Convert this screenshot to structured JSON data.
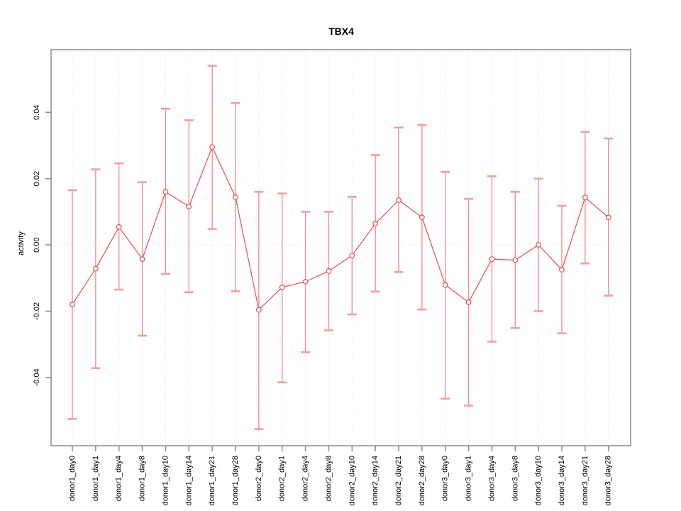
{
  "chart_data": {
    "type": "line",
    "title": "TBX4",
    "ylabel": "activity",
    "xlabel": "",
    "legend": "none",
    "grid": "vertical-dotted-per-category",
    "zero_line": true,
    "marker": "open-circle",
    "error_bars": true,
    "categories": [
      "donor1_day0",
      "donor1_day1",
      "donor1_day4",
      "donor1_day8",
      "donor1_day10",
      "donor1_day14",
      "donor1_day21",
      "donor1_day28",
      "donor2_day0",
      "donor2_day1",
      "donor2_day4",
      "donor2_day8",
      "donor2_day10",
      "donor2_day14",
      "donor2_day21",
      "donor2_day28",
      "donor3_day0",
      "donor3_day1",
      "donor3_day4",
      "donor3_day8",
      "donor3_day10",
      "donor3_day14",
      "donor3_day21",
      "donor3_day28"
    ],
    "series": [
      {
        "name": "activity",
        "values": [
          -0.018,
          -0.0072,
          0.0054,
          -0.0043,
          0.016,
          0.0116,
          0.0295,
          0.0144,
          -0.0196,
          -0.0128,
          -0.0111,
          -0.0079,
          -0.0032,
          0.0064,
          0.0135,
          0.0083,
          -0.0121,
          -0.0173,
          -0.0043,
          -0.0046,
          0.0,
          -0.0075,
          0.0143,
          0.0083
        ],
        "error_low": [
          -0.0525,
          -0.0372,
          -0.0135,
          -0.0274,
          -0.0088,
          -0.0143,
          0.0048,
          -0.014,
          -0.0556,
          -0.0415,
          -0.0324,
          -0.0258,
          -0.021,
          -0.0141,
          -0.0082,
          -0.0195,
          -0.0464,
          -0.0485,
          -0.0292,
          -0.0251,
          -0.02,
          -0.0267,
          -0.0056,
          -0.0153
        ],
        "error_high": [
          0.0165,
          0.0228,
          0.0246,
          0.0189,
          0.0411,
          0.0376,
          0.054,
          0.0428,
          0.016,
          0.0155,
          0.01,
          0.01,
          0.0145,
          0.0271,
          0.0354,
          0.0362,
          0.022,
          0.0139,
          0.0207,
          0.016,
          0.02,
          0.0118,
          0.0341,
          0.0321
        ]
      }
    ],
    "yticks": [
      -0.04,
      -0.02,
      0.0,
      0.02,
      0.04
    ],
    "ytick_labels": [
      "-0.04",
      "-0.02",
      "0.00",
      "0.02",
      "0.04"
    ],
    "ylim": [
      -0.0606,
      0.0589
    ],
    "colors": {
      "series": "#f04b4b",
      "error_bar": "#f59090",
      "error_cap": "#f79c9c",
      "grid": "#dedede",
      "zero_line": "#dedede",
      "frame": "#8c8c8c",
      "tick": "#8c8c8c",
      "text": "#000000",
      "background": "#ffffff"
    }
  }
}
